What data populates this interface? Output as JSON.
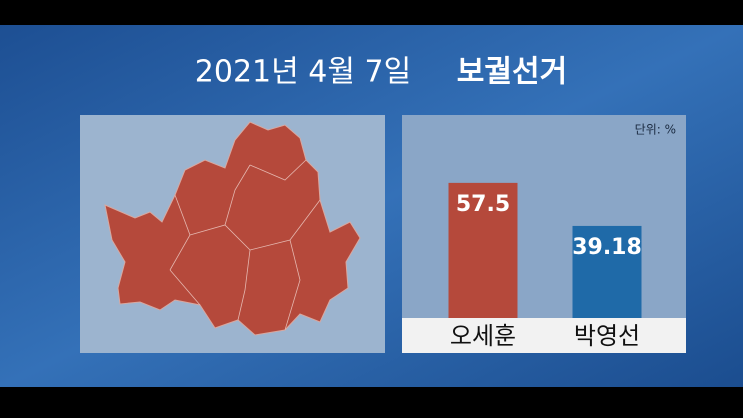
{
  "title": "2021년 4월 7일",
  "title_emphasis": "보궐선거",
  "chart_data": {
    "type": "bar",
    "unit_label": "단위: %",
    "categories": [
      "오세훈",
      "박영선"
    ],
    "values": [
      57.5,
      39.18
    ],
    "colors": [
      "#b5493b",
      "#1f6aa8"
    ],
    "ylim": [
      0,
      80
    ]
  }
}
